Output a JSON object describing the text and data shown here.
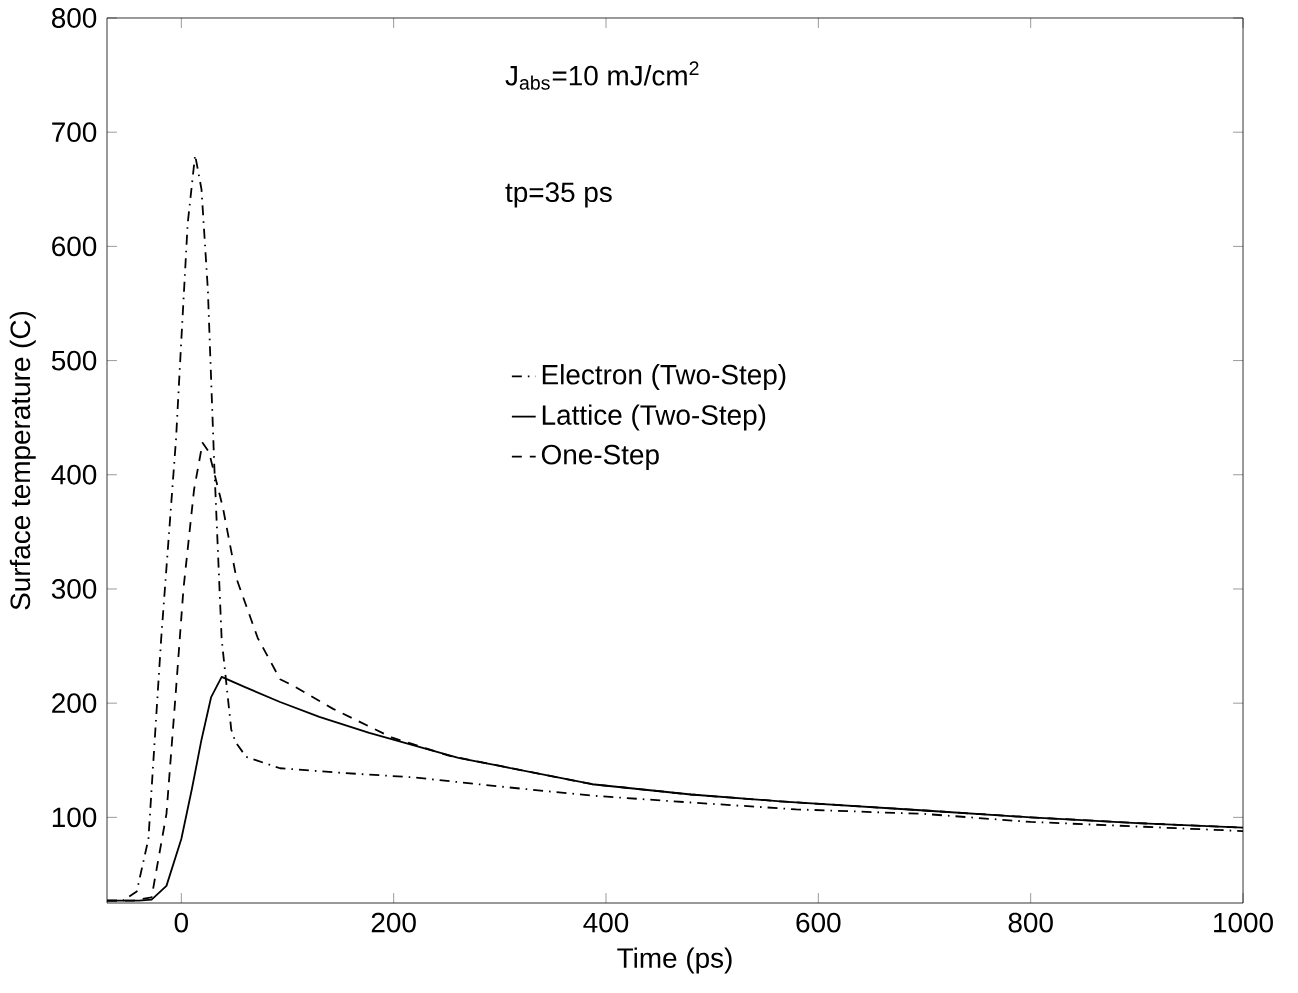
{
  "chart_data": {
    "type": "line",
    "xlabel": "Time (ps)",
    "ylabel": "Surface temperature (C)",
    "xlim": [
      -70,
      1000
    ],
    "ylim": [
      25,
      800
    ],
    "xticks": [
      0,
      200,
      400,
      600,
      800,
      1000
    ],
    "yticks": [
      100,
      200,
      300,
      400,
      500,
      600,
      700,
      800
    ],
    "grid": false,
    "legend": "right",
    "marker": "none",
    "annotations": [
      "J$_{abs}$=10 mJ/cm$^{2}$",
      "tp=35 ps"
    ],
    "series": [
      {
        "name": "Electron (Two-Step)",
        "color": "#000000",
        "line_style": "dashdot",
        "x": [
          -70,
          -55,
          -42,
          -31,
          -19,
          -5,
          0,
          6,
          13,
          19,
          25,
          31,
          38,
          47,
          51,
          61,
          93,
          150,
          219,
          300,
          387,
          480,
          579,
          700,
          800,
          900,
          1000
        ],
        "values": [
          27,
          27,
          35,
          81,
          256,
          431,
          518,
          620,
          680,
          650,
          562,
          409,
          256,
          177,
          166,
          153,
          143,
          139,
          135,
          127,
          119,
          113,
          107,
          103,
          96,
          92,
          88
        ]
      },
      {
        "name": "Lattice (Two-Step)",
        "color": "#000000",
        "line_style": "solid",
        "x": [
          -70,
          -40,
          -28,
          -14,
          0,
          10,
          19,
          28,
          38,
          60,
          93,
          130,
          177,
          261,
          300,
          387,
          480,
          564,
          700,
          800,
          900,
          1000
        ],
        "values": [
          27,
          27,
          28,
          40,
          81,
          125,
          168,
          205,
          223,
          214,
          201,
          188,
          174,
          152,
          145,
          129,
          120,
          114,
          106,
          100,
          95,
          91
        ]
      },
      {
        "name": "One-Step",
        "color": "#000000",
        "line_style": "dashed",
        "x": [
          -70,
          -45,
          -28,
          -14,
          -5,
          2,
          12,
          20,
          26,
          39,
          52,
          72,
          93,
          106,
          143,
          198,
          252,
          300,
          387,
          480,
          564,
          700,
          800,
          900,
          1000
        ],
        "values": [
          27,
          27,
          30,
          103,
          212,
          300,
          387,
          428,
          420,
          372,
          309,
          257,
          221,
          215,
          195,
          170,
          154,
          145,
          129,
          120,
          114,
          106,
          100,
          95,
          91
        ]
      }
    ]
  }
}
